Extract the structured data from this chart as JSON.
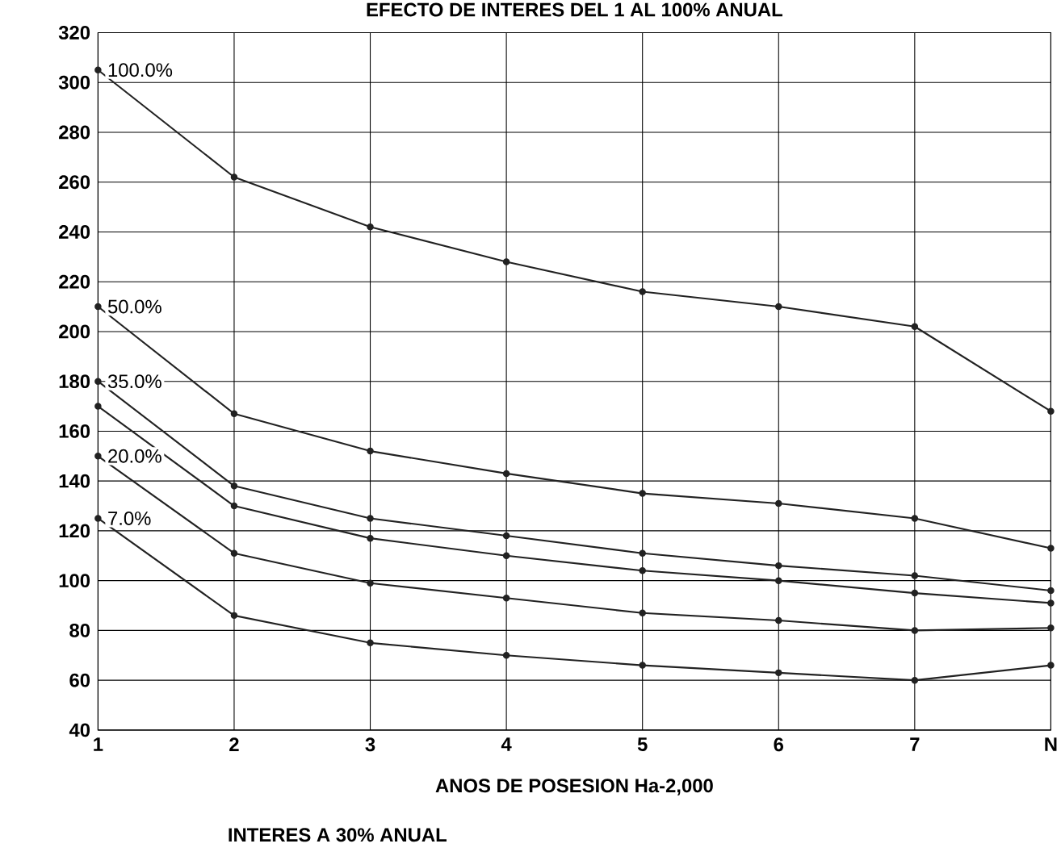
{
  "chart_data": {
    "type": "line",
    "title": "EFECTO DE INTERES DEL 1 AL 100% ANUAL",
    "xlabel": "ANOS DE POSESION Ha-2,000",
    "categories": [
      "1",
      "2",
      "3",
      "4",
      "5",
      "6",
      "7",
      "N"
    ],
    "series": [
      {
        "name": "100.0%",
        "color": "#222222",
        "values": [
          305,
          262,
          242,
          228,
          216,
          210,
          202,
          168
        ]
      },
      {
        "name": "50.0%",
        "color": "#222222",
        "values": [
          210,
          167,
          152,
          143,
          135,
          131,
          125,
          113
        ]
      },
      {
        "name": "35.0%",
        "color": "#222222",
        "values": [
          180,
          138,
          125,
          118,
          111,
          106,
          102,
          96
        ]
      },
      {
        "color": "#222222",
        "values": [
          170,
          130,
          117,
          110,
          104,
          100,
          95,
          91
        ]
      },
      {
        "name": "20.0%",
        "color": "#222222",
        "values": [
          150,
          111,
          99,
          93,
          87,
          84,
          80,
          81
        ]
      },
      {
        "name": "7.0%",
        "color": "#222222",
        "values": [
          125,
          86,
          75,
          70,
          66,
          63,
          60,
          66
        ]
      }
    ],
    "ylim": [
      40,
      320
    ],
    "yticks": [
      40,
      60,
      80,
      100,
      120,
      140,
      160,
      180,
      200,
      220,
      240,
      260,
      280,
      300,
      320
    ],
    "grid": true,
    "marker": "circle",
    "line_style": "solid",
    "annotations": [
      "INTERES A 30% ANUAL"
    ]
  }
}
